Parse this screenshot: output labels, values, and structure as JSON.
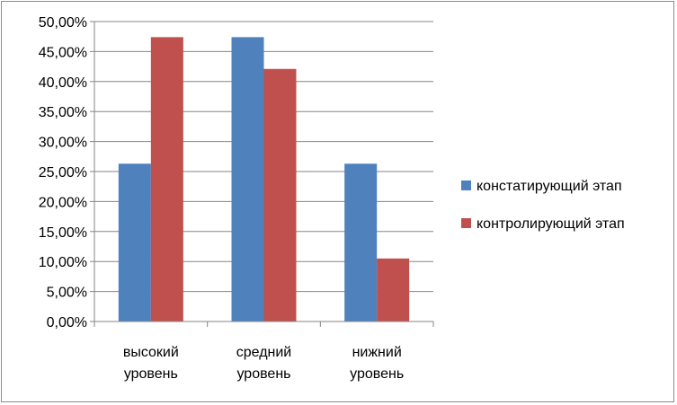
{
  "chart_data": {
    "type": "bar",
    "categories": [
      [
        "высокий",
        "уровень"
      ],
      [
        "средний",
        "уровень"
      ],
      [
        "нижний",
        "уровень"
      ]
    ],
    "series": [
      {
        "name": "констатирующий этап",
        "color": "#4F81BD",
        "values": [
          26.3,
          47.4,
          26.3
        ]
      },
      {
        "name": "контролирующий этап",
        "color": "#C0504D",
        "values": [
          47.4,
          42.1,
          10.5
        ]
      }
    ],
    "ylim": [
      0,
      50
    ],
    "yticks": [
      "0,00%",
      "5,00%",
      "10,00%",
      "15,00%",
      "20,00%",
      "25,00%",
      "30,00%",
      "35,00%",
      "40,00%",
      "45,00%",
      "50,00%"
    ],
    "grid": true,
    "legend_position": "right"
  }
}
